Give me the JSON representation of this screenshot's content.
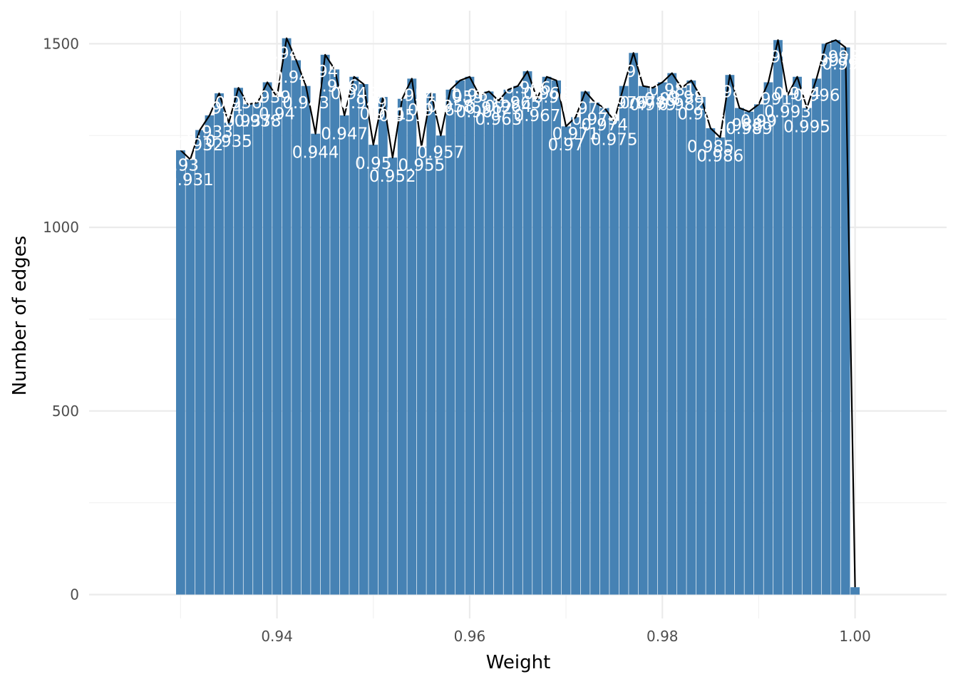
{
  "chart_data": {
    "type": "bar",
    "title": "",
    "xlabel": "Weight",
    "ylabel": "Number of edges",
    "xlim": [
      0.9205,
      1.0095
    ],
    "ylim": [
      -65,
      1590
    ],
    "x_ticks": [
      {
        "value": 0.94,
        "label": "0.94"
      },
      {
        "value": 0.96,
        "label": "0.96"
      },
      {
        "value": 0.98,
        "label": "0.98"
      },
      {
        "value": 1.0,
        "label": "1.00"
      }
    ],
    "y_ticks": [
      {
        "value": 0,
        "label": "0"
      },
      {
        "value": 500,
        "label": "500"
      },
      {
        "value": 1000,
        "label": "1000"
      },
      {
        "value": 1500,
        "label": "1500"
      }
    ],
    "grid": true,
    "bar_color": "#4682B4",
    "line_color": "#000000",
    "label_color": "#FFFFFF",
    "bar_width": 0.00095,
    "x": [
      0.93,
      0.931,
      0.932,
      0.933,
      0.934,
      0.935,
      0.936,
      0.937,
      0.938,
      0.939,
      0.94,
      0.941,
      0.942,
      0.943,
      0.944,
      0.945,
      0.946,
      0.947,
      0.948,
      0.949,
      0.95,
      0.951,
      0.952,
      0.953,
      0.954,
      0.955,
      0.956,
      0.957,
      0.958,
      0.959,
      0.96,
      0.961,
      0.962,
      0.963,
      0.964,
      0.965,
      0.966,
      0.967,
      0.968,
      0.969,
      0.97,
      0.971,
      0.972,
      0.973,
      0.974,
      0.975,
      0.976,
      0.977,
      0.978,
      0.979,
      0.98,
      0.981,
      0.982,
      0.983,
      0.984,
      0.985,
      0.986,
      0.987,
      0.988,
      0.989,
      0.99,
      0.991,
      0.992,
      0.993,
      0.994,
      0.995,
      0.996,
      0.997,
      0.998,
      0.999,
      1.0
    ],
    "values": [
      1210,
      1185,
      1265,
      1305,
      1365,
      1285,
      1380,
      1335,
      1340,
      1395,
      1355,
      1515,
      1455,
      1385,
      1255,
      1470,
      1430,
      1305,
      1410,
      1390,
      1225,
      1355,
      1190,
      1350,
      1405,
      1220,
      1365,
      1250,
      1375,
      1400,
      1410,
      1360,
      1370,
      1345,
      1375,
      1385,
      1425,
      1350,
      1410,
      1400,
      1275,
      1300,
      1370,
      1340,
      1325,
      1290,
      1385,
      1475,
      1385,
      1380,
      1395,
      1420,
      1380,
      1400,
      1355,
      1270,
      1245,
      1415,
      1325,
      1315,
      1335,
      1395,
      1510,
      1360,
      1410,
      1325,
      1405,
      1500,
      1510,
      1490,
      20
    ],
    "line_values": [
      1210,
      1185,
      1265,
      1305,
      1365,
      1285,
      1380,
      1335,
      1340,
      1395,
      1355,
      1515,
      1455,
      1385,
      1255,
      1470,
      1430,
      1305,
      1410,
      1390,
      1225,
      1355,
      1190,
      1350,
      1405,
      1220,
      1365,
      1250,
      1375,
      1400,
      1410,
      1360,
      1370,
      1345,
      1375,
      1385,
      1425,
      1350,
      1410,
      1400,
      1275,
      1300,
      1370,
      1340,
      1325,
      1290,
      1385,
      1475,
      1385,
      1380,
      1395,
      1420,
      1380,
      1400,
      1355,
      1270,
      1245,
      1415,
      1325,
      1315,
      1335,
      1395,
      1510,
      1360,
      1410,
      1325,
      1405,
      1500,
      1510,
      1490,
      20
    ],
    "annotations": [
      {
        "x": 0.93,
        "y": 1170,
        "label": "0.93"
      },
      {
        "x": 0.931,
        "y": 1130,
        "label": "0.931"
      },
      {
        "x": 0.932,
        "y": 1225,
        "label": "0.932"
      },
      {
        "x": 0.933,
        "y": 1260,
        "label": "0.933"
      },
      {
        "x": 0.934,
        "y": 1325,
        "label": "0.934"
      },
      {
        "x": 0.935,
        "y": 1235,
        "label": "0.935"
      },
      {
        "x": 0.936,
        "y": 1340,
        "label": "0.936"
      },
      {
        "x": 0.937,
        "y": 1290,
        "label": "0.937"
      },
      {
        "x": 0.938,
        "y": 1290,
        "label": "0.938"
      },
      {
        "x": 0.939,
        "y": 1355,
        "label": "0.939"
      },
      {
        "x": 0.94,
        "y": 1310,
        "label": "0.94"
      },
      {
        "x": 0.941,
        "y": 1475,
        "label": "0.941"
      },
      {
        "x": 0.942,
        "y": 1410,
        "label": "0.942"
      },
      {
        "x": 0.943,
        "y": 1340,
        "label": "0.943"
      },
      {
        "x": 0.944,
        "y": 1205,
        "label": "0.944"
      },
      {
        "x": 0.945,
        "y": 1425,
        "label": "0.945"
      },
      {
        "x": 0.946,
        "y": 1385,
        "label": "0.946"
      },
      {
        "x": 0.947,
        "y": 1255,
        "label": "0.947"
      },
      {
        "x": 0.948,
        "y": 1365,
        "label": "0.948"
      },
      {
        "x": 0.949,
        "y": 1340,
        "label": "0.949"
      },
      {
        "x": 0.95,
        "y": 1175,
        "label": "0.95"
      },
      {
        "x": 0.951,
        "y": 1310,
        "label": "0.951"
      },
      {
        "x": 0.952,
        "y": 1140,
        "label": "0.952"
      },
      {
        "x": 0.953,
        "y": 1305,
        "label": "0.953"
      },
      {
        "x": 0.954,
        "y": 1360,
        "label": "0.954"
      },
      {
        "x": 0.955,
        "y": 1170,
        "label": "0.955"
      },
      {
        "x": 0.956,
        "y": 1320,
        "label": "0.956"
      },
      {
        "x": 0.957,
        "y": 1205,
        "label": "0.957"
      },
      {
        "x": 0.958,
        "y": 1330,
        "label": "0.958"
      },
      {
        "x": 0.959,
        "y": 1355,
        "label": "0.959"
      },
      {
        "x": 0.96,
        "y": 1360,
        "label": "0.96"
      },
      {
        "x": 0.961,
        "y": 1315,
        "label": "0.961"
      },
      {
        "x": 0.962,
        "y": 1325,
        "label": "0.962"
      },
      {
        "x": 0.963,
        "y": 1295,
        "label": "0.963"
      },
      {
        "x": 0.964,
        "y": 1330,
        "label": "0.964"
      },
      {
        "x": 0.965,
        "y": 1340,
        "label": "0.965"
      },
      {
        "x": 0.966,
        "y": 1380,
        "label": "0.966"
      },
      {
        "x": 0.967,
        "y": 1305,
        "label": "0.967"
      },
      {
        "x": 0.968,
        "y": 1365,
        "label": "0.968"
      },
      {
        "x": 0.969,
        "y": 1355,
        "label": "0.969"
      },
      {
        "x": 0.97,
        "y": 1225,
        "label": "0.97"
      },
      {
        "x": 0.971,
        "y": 1255,
        "label": "0.971"
      },
      {
        "x": 0.972,
        "y": 1325,
        "label": "0.972"
      },
      {
        "x": 0.973,
        "y": 1295,
        "label": "0.973"
      },
      {
        "x": 0.974,
        "y": 1280,
        "label": "0.974"
      },
      {
        "x": 0.975,
        "y": 1240,
        "label": "0.975"
      },
      {
        "x": 0.976,
        "y": 1340,
        "label": "0.976"
      },
      {
        "x": 0.977,
        "y": 1425,
        "label": "0.977"
      },
      {
        "x": 0.978,
        "y": 1340,
        "label": "0.978"
      },
      {
        "x": 0.979,
        "y": 1335,
        "label": "0.979"
      },
      {
        "x": 0.98,
        "y": 1350,
        "label": "0.98"
      },
      {
        "x": 0.981,
        "y": 1375,
        "label": "0.981"
      },
      {
        "x": 0.982,
        "y": 1335,
        "label": "0.982"
      },
      {
        "x": 0.983,
        "y": 1355,
        "label": "0.983"
      },
      {
        "x": 0.984,
        "y": 1310,
        "label": "0.984"
      },
      {
        "x": 0.985,
        "y": 1220,
        "label": "0.985"
      },
      {
        "x": 0.986,
        "y": 1195,
        "label": "0.986"
      },
      {
        "x": 0.987,
        "y": 1370,
        "label": "0.987"
      },
      {
        "x": 0.988,
        "y": 1280,
        "label": "0.988"
      },
      {
        "x": 0.989,
        "y": 1270,
        "label": "0.989"
      },
      {
        "x": 0.99,
        "y": 1290,
        "label": "0.99"
      },
      {
        "x": 0.991,
        "y": 1350,
        "label": "0.991"
      },
      {
        "x": 0.992,
        "y": 1465,
        "label": "0.992"
      },
      {
        "x": 0.993,
        "y": 1315,
        "label": "0.993"
      },
      {
        "x": 0.994,
        "y": 1365,
        "label": "0.994"
      },
      {
        "x": 0.995,
        "y": 1275,
        "label": "0.995"
      },
      {
        "x": 0.996,
        "y": 1360,
        "label": "0.996"
      },
      {
        "x": 0.997,
        "y": 1455,
        "label": "0.997"
      },
      {
        "x": 0.998,
        "y": 1465,
        "label": "0.998"
      },
      {
        "x": 0.999,
        "y": 1445,
        "label": "0.999"
      }
    ]
  }
}
